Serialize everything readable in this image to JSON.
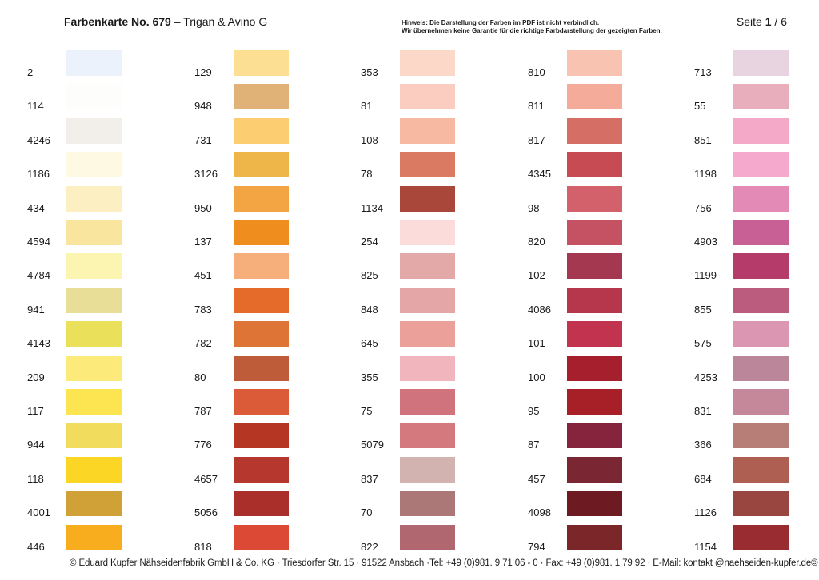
{
  "header": {
    "title_bold": "Farbenkarte No. 679",
    "title_rest": " – Trigan & Avino G",
    "notice_line1": "Hinweis: Die Darstellung der Farben im PDF ist nicht verbindlich.",
    "notice_line2": "Wir übernehmen keine Garantie für die richtige Farbdarstellung der gezeigten Farben.",
    "page_label": "Seite ",
    "page_current": "1",
    "page_total": " / 6"
  },
  "columns": [
    [
      {
        "code": "2",
        "color": "#EBF2FC"
      },
      {
        "code": "114",
        "color": "#FDFDFB"
      },
      {
        "code": "4246",
        "color": "#F2EFEB"
      },
      {
        "code": "1186",
        "color": "#FDF9E3"
      },
      {
        "code": "434",
        "color": "#FCF0C3"
      },
      {
        "code": "4594",
        "color": "#F9E59E"
      },
      {
        "code": "4784",
        "color": "#FCF5B2"
      },
      {
        "code": "941",
        "color": "#E8DE97"
      },
      {
        "code": "4143",
        "color": "#EAE05A"
      },
      {
        "code": "209",
        "color": "#FCEB7B"
      },
      {
        "code": "117",
        "color": "#FDE551"
      },
      {
        "code": "944",
        "color": "#F2DC5D"
      },
      {
        "code": "118",
        "color": "#FCD624"
      },
      {
        "code": "4001",
        "color": "#CFA136"
      },
      {
        "code": "446",
        "color": "#F7AD1E"
      }
    ],
    [
      {
        "code": "129",
        "color": "#FDDF93"
      },
      {
        "code": "948",
        "color": "#E0B278"
      },
      {
        "code": "731",
        "color": "#FDCD72"
      },
      {
        "code": "3126",
        "color": "#EEB548"
      },
      {
        "code": "950",
        "color": "#F3A443"
      },
      {
        "code": "137",
        "color": "#F08D1F"
      },
      {
        "code": "451",
        "color": "#F6AF7A"
      },
      {
        "code": "783",
        "color": "#E56B2A"
      },
      {
        "code": "782",
        "color": "#DE7536"
      },
      {
        "code": "80",
        "color": "#BE5C3A"
      },
      {
        "code": "787",
        "color": "#DB5A38"
      },
      {
        "code": "776",
        "color": "#B53623"
      },
      {
        "code": "4657",
        "color": "#B6372D"
      },
      {
        "code": "5056",
        "color": "#AA2E29"
      },
      {
        "code": "818",
        "color": "#DC4A35"
      }
    ],
    [
      {
        "code": "353",
        "color": "#FCD8C8"
      },
      {
        "code": "81",
        "color": "#FACDC0"
      },
      {
        "code": "108",
        "color": "#F8B9A3"
      },
      {
        "code": "78",
        "color": "#DB7A63"
      },
      {
        "code": "1134",
        "color": "#A9473A"
      },
      {
        "code": "254",
        "color": "#FCDCDA"
      },
      {
        "code": "825",
        "color": "#E2A9A8"
      },
      {
        "code": "848",
        "color": "#E4A6A6"
      },
      {
        "code": "645",
        "color": "#EBA09A"
      },
      {
        "code": "355",
        "color": "#F1B5BE"
      },
      {
        "code": "75",
        "color": "#D0737C"
      },
      {
        "code": "5079",
        "color": "#D47A7E"
      },
      {
        "code": "837",
        "color": "#D2B3AF"
      },
      {
        "code": "70",
        "color": "#AB7877"
      },
      {
        "code": "822",
        "color": "#B16770"
      }
    ],
    [
      {
        "code": "810",
        "color": "#F8C3B1"
      },
      {
        "code": "811",
        "color": "#F5AB9A"
      },
      {
        "code": "817",
        "color": "#D56F66"
      },
      {
        "code": "4345",
        "color": "#C74B53"
      },
      {
        "code": "98",
        "color": "#D3616C"
      },
      {
        "code": "820",
        "color": "#C55263"
      },
      {
        "code": "102",
        "color": "#A43850"
      },
      {
        "code": "4086",
        "color": "#B6364C"
      },
      {
        "code": "101",
        "color": "#C2334F"
      },
      {
        "code": "100",
        "color": "#A61F2C"
      },
      {
        "code": "95",
        "color": "#A72027"
      },
      {
        "code": "87",
        "color": "#85243C"
      },
      {
        "code": "457",
        "color": "#7A2733"
      },
      {
        "code": "4098",
        "color": "#6D1A22"
      },
      {
        "code": "794",
        "color": "#7B272A"
      }
    ],
    [
      {
        "code": "713",
        "color": "#E8D4E1"
      },
      {
        "code": "55",
        "color": "#E9AEBB"
      },
      {
        "code": "851",
        "color": "#F4A9C9"
      },
      {
        "code": "1198",
        "color": "#F5A9CD"
      },
      {
        "code": "756",
        "color": "#E38BB6"
      },
      {
        "code": "4903",
        "color": "#C86095"
      },
      {
        "code": "1199",
        "color": "#B53B6A"
      },
      {
        "code": "855",
        "color": "#BB5C7E"
      },
      {
        "code": "575",
        "color": "#DB97B2"
      },
      {
        "code": "4253",
        "color": "#BC869A"
      },
      {
        "code": "831",
        "color": "#C4889A"
      },
      {
        "code": "366",
        "color": "#B77E77"
      },
      {
        "code": "684",
        "color": "#AF5F51"
      },
      {
        "code": "1126",
        "color": "#98463F"
      },
      {
        "code": "1154",
        "color": "#982C30"
      }
    ]
  ],
  "footer": {
    "text": "© Eduard Kupfer Nähseidenfabrik GmbH & Co. KG · Triesdorfer Str. 15 · 91522 Ansbach ·Tel: +49 (0)981. 9 71 06 - 0 · Fax: +49 (0)981. 1 79 92 · E-Mail: kontakt @naehseiden-kupfer.de©"
  }
}
